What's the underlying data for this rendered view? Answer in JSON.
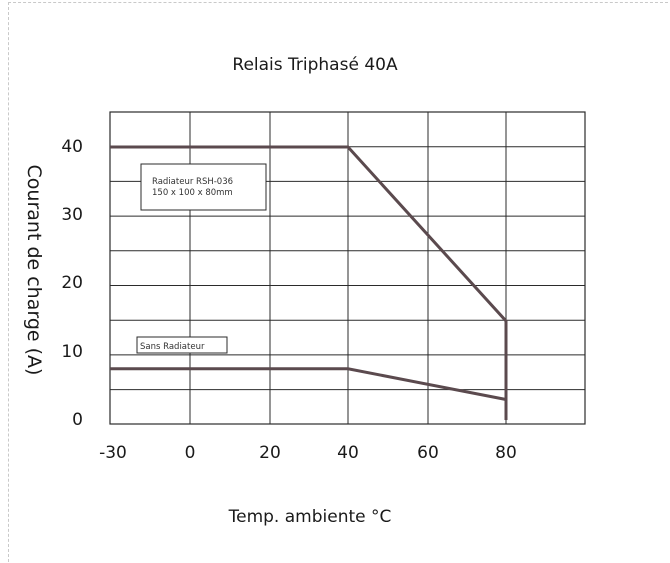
{
  "chart_data": {
    "type": "line",
    "title": "Relais Triphasé 40A",
    "xlabel": "Temp. ambiente °C",
    "ylabel": "Courant de charge (A)",
    "x_ticks": [
      "-30",
      "0",
      "20",
      "40",
      "60",
      "80"
    ],
    "y_ticks": [
      "0",
      "10",
      "20",
      "30",
      "40"
    ],
    "ylim": [
      0,
      40
    ],
    "grid": true,
    "series": [
      {
        "name": "Radiateur RSH-036",
        "x": [
          -30,
          40,
          80,
          80
        ],
        "y": [
          40,
          40,
          14.5,
          0
        ],
        "color": "#5b4a4e"
      },
      {
        "name": "Sans Radiateur",
        "x": [
          -30,
          40,
          80
        ],
        "y": [
          7.5,
          7.5,
          3
        ],
        "color": "#5b4a4e"
      }
    ],
    "annotations": [
      {
        "lines": [
          "Radiateur RSH-036",
          "150 x 100 x 80mm"
        ]
      },
      {
        "lines": [
          "Sans Radiateur"
        ]
      }
    ]
  },
  "colors": {
    "grid": "#2b2b2b",
    "line": "#5b4a4e",
    "background": "#ffffff"
  }
}
